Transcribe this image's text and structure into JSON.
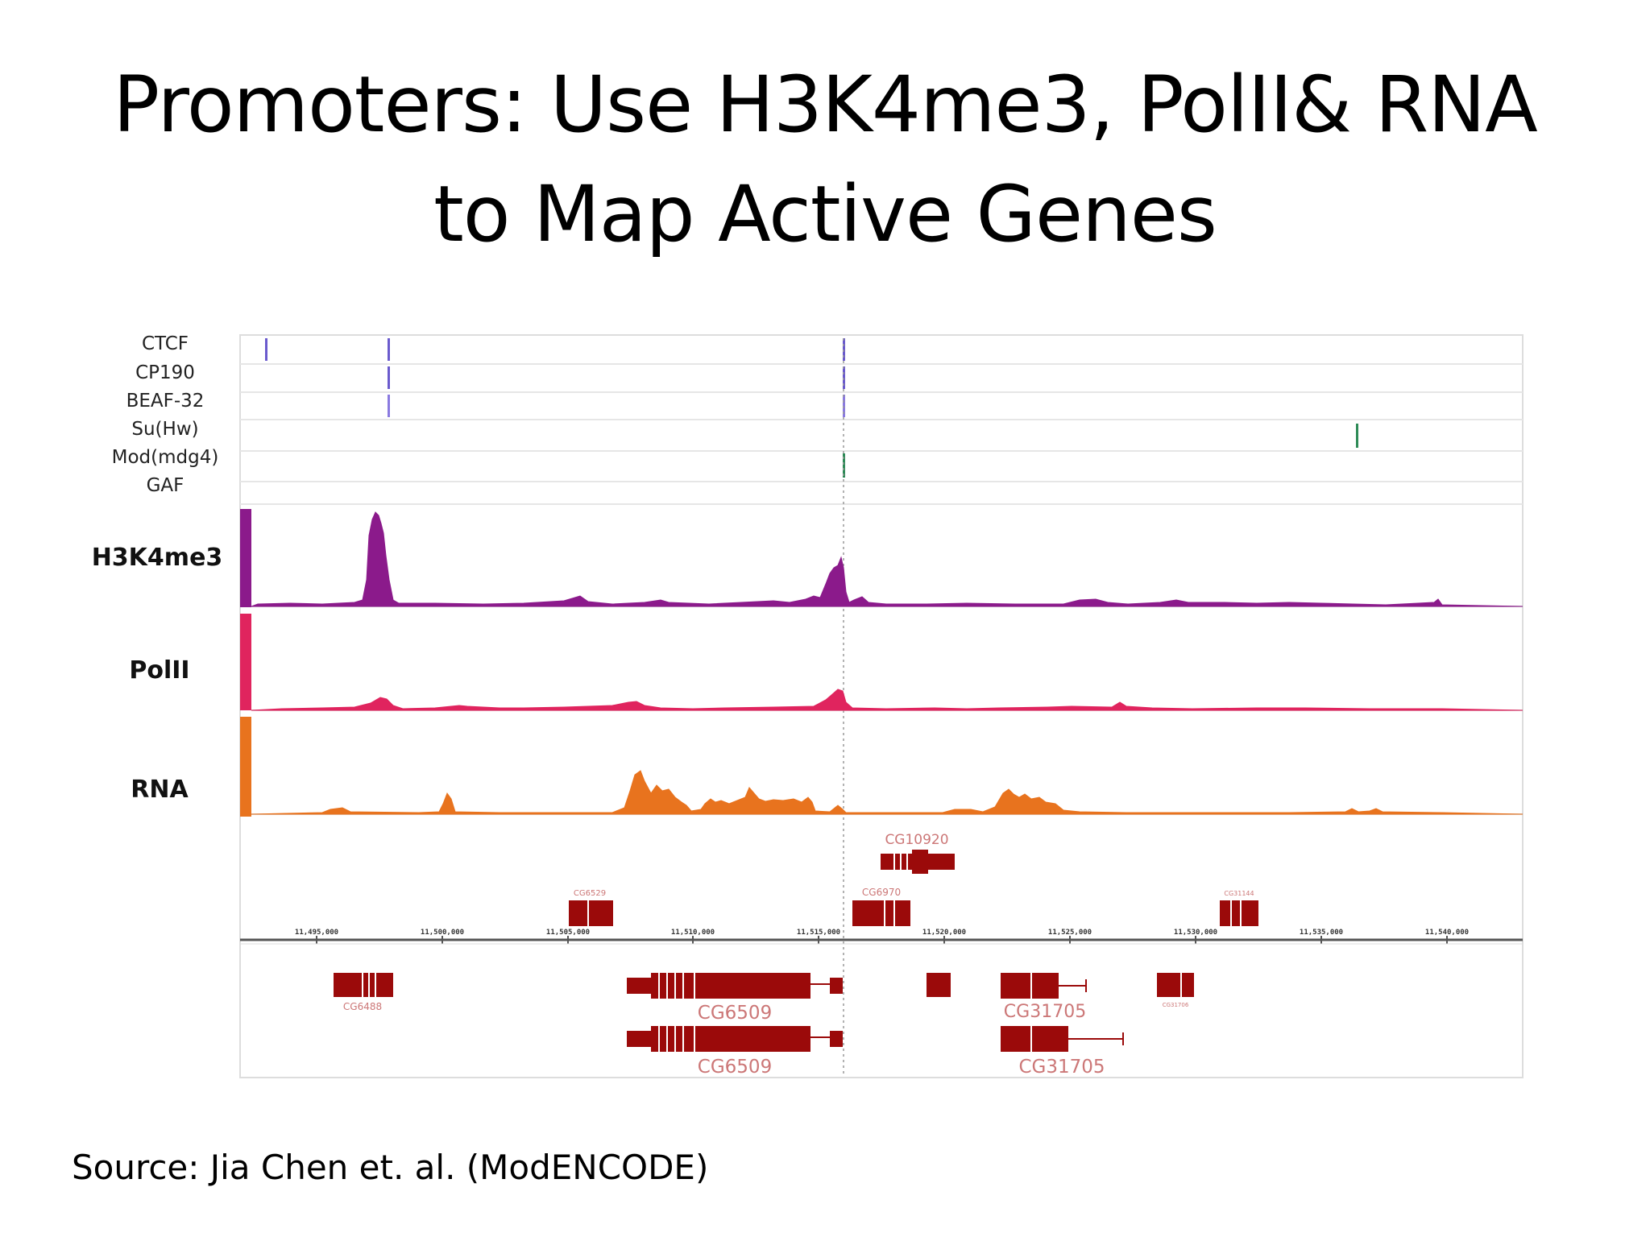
{
  "slide": {
    "title_line1": "Promoters: Use H3K4me3, PolII& RNA",
    "title_line2": "to Map Active Genes",
    "source": "Source: Jia Chen et. al. (ModENCODE)"
  },
  "tracks": {
    "insulators": [
      "CTCF",
      "CP190",
      "BEAF-32",
      "Su(Hw)",
      "Mod(mdg4)",
      "GAF"
    ],
    "signals": [
      {
        "name": "H3K4me3",
        "color": "#8b1a8b"
      },
      {
        "name": "PolII",
        "color": "#e0245e"
      },
      {
        "name": "RNA",
        "color": "#e8731e"
      }
    ]
  },
  "coordinates": [
    "11,495,000",
    "11,500,000",
    "11,505,000",
    "11,510,000",
    "11,515,000",
    "11,520,000",
    "11,525,000",
    "11,530,000",
    "11,535,000",
    "11,540,000"
  ],
  "genes": {
    "top": [
      "CG10920",
      "CG6529",
      "CG6970",
      "CG31144"
    ],
    "bottom": [
      "CG6488",
      "CG6509",
      "CG31705",
      "CG6509",
      "CG31705",
      "CG31706"
    ]
  },
  "colors": {
    "gene": "#9b0a0a",
    "insulator_blue": "#6a5acd",
    "insulator_green": "#2e8b57"
  }
}
